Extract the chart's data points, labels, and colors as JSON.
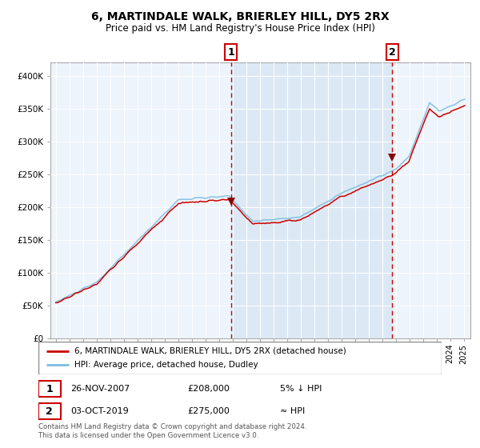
{
  "title": "6, MARTINDALE WALK, BRIERLEY HILL, DY5 2RX",
  "subtitle": "Price paid vs. HM Land Registry's House Price Index (HPI)",
  "title_fontsize": 10,
  "subtitle_fontsize": 8.5,
  "background_color": "#ffffff",
  "plot_bg_color": "#dce9f5",
  "plot_bg_outside": "#eef4fb",
  "hpi_color": "#7bbde0",
  "price_color": "#cc0000",
  "marker_color": "#8b0000",
  "vline_color": "#cc0000",
  "ylim": [
    0,
    420000
  ],
  "yticks": [
    0,
    50000,
    100000,
    150000,
    200000,
    250000,
    300000,
    350000,
    400000
  ],
  "xlim_left": 1994.6,
  "xlim_right": 2025.5,
  "sale1_date": 2007.9,
  "sale1_price": 208000,
  "sale1_label": "1",
  "sale2_date": 2019.75,
  "sale2_price": 275000,
  "sale2_label": "2",
  "legend_line1": "6, MARTINDALE WALK, BRIERLEY HILL, DY5 2RX (detached house)",
  "legend_line2": "HPI: Average price, detached house, Dudley",
  "annotation1_date": "26-NOV-2007",
  "annotation1_price": "£208,000",
  "annotation1_rel": "5% ↓ HPI",
  "annotation2_date": "03-OCT-2019",
  "annotation2_price": "£275,000",
  "annotation2_rel": "≈ HPI",
  "footnote": "Contains HM Land Registry data © Crown copyright and database right 2024.\nThis data is licensed under the Open Government Licence v3.0."
}
